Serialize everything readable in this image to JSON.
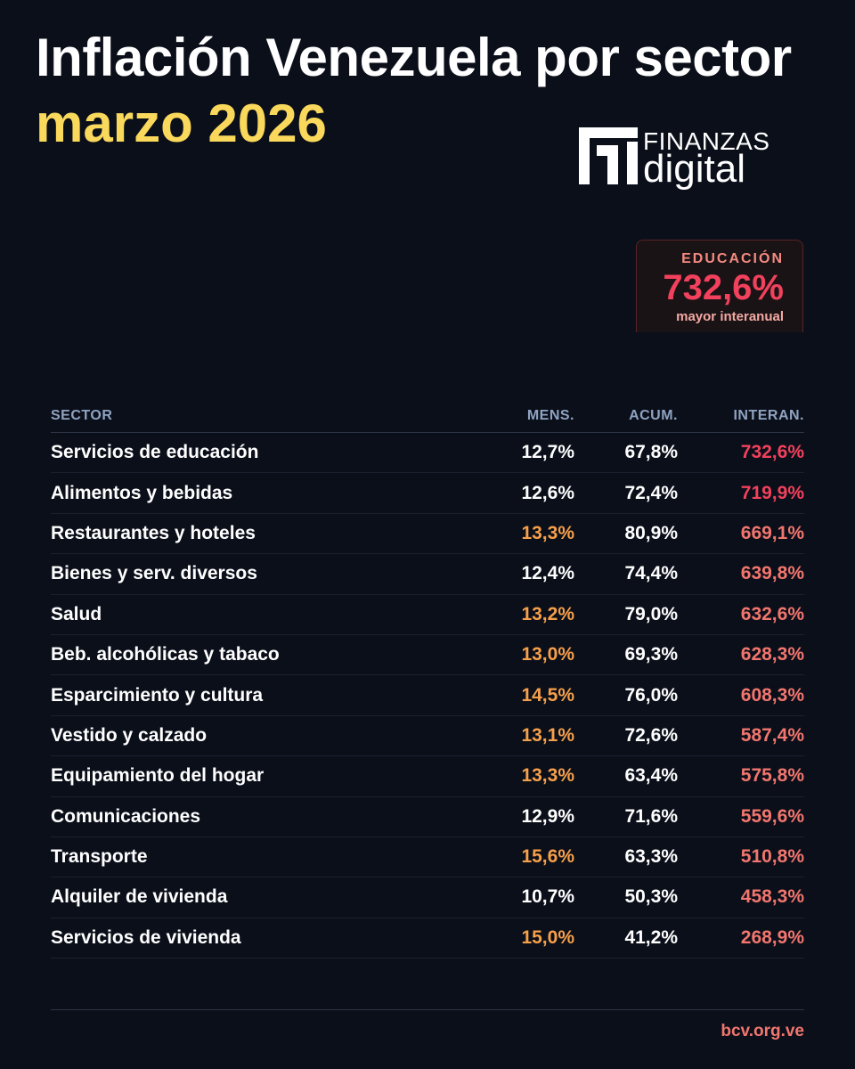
{
  "title": "Inflación Venezuela por sector",
  "subtitle": "marzo 2026",
  "logo": {
    "top": "FINANZAS",
    "bottom": "digital"
  },
  "highlight": {
    "label": "EDUCACIÓN",
    "value": "732,6%",
    "note": "mayor interanual"
  },
  "table": {
    "headers": {
      "sector": "SECTOR",
      "mens": "MENS.",
      "acum": "ACUM.",
      "inter": "INTERAN."
    },
    "rows": [
      {
        "sector": "Servicios de educación",
        "mens": "12,7%",
        "acum": "67,8%",
        "inter": "732,6%"
      },
      {
        "sector": "Alimentos y bebidas",
        "mens": "12,6%",
        "acum": "72,4%",
        "inter": "719,9%"
      },
      {
        "sector": "Restaurantes y hoteles",
        "mens": "13,3%",
        "acum": "80,9%",
        "inter": "669,1%"
      },
      {
        "sector": "Bienes y serv. diversos",
        "mens": "12,4%",
        "acum": "74,4%",
        "inter": "639,8%"
      },
      {
        "sector": "Salud",
        "mens": "13,2%",
        "acum": "79,0%",
        "inter": "632,6%"
      },
      {
        "sector": "Beb. alcohólicas y tabaco",
        "mens": "13,0%",
        "acum": "69,3%",
        "inter": "628,3%"
      },
      {
        "sector": "Esparcimiento y cultura",
        "mens": "14,5%",
        "acum": "76,0%",
        "inter": "608,3%"
      },
      {
        "sector": "Vestido y calzado",
        "mens": "13,1%",
        "acum": "72,6%",
        "inter": "587,4%"
      },
      {
        "sector": "Equipamiento del hogar",
        "mens": "13,3%",
        "acum": "63,4%",
        "inter": "575,8%"
      },
      {
        "sector": "Comunicaciones",
        "mens": "12,9%",
        "acum": "71,6%",
        "inter": "559,6%"
      },
      {
        "sector": "Transporte",
        "mens": "15,6%",
        "acum": "63,3%",
        "inter": "510,8%"
      },
      {
        "sector": "Alquiler de vivienda",
        "mens": "10,7%",
        "acum": "50,3%",
        "inter": "458,3%"
      },
      {
        "sector": "Servicios de vivienda",
        "mens": "15,0%",
        "acum": "41,2%",
        "inter": "268,9%"
      }
    ]
  },
  "colors": {
    "background": "#0b0f1a",
    "accent_yellow": "#f9d85b",
    "mens_normal": "#ffffff",
    "mens_high": "#f7a04a",
    "inter_top": "#f2415c",
    "inter_other": "#f2766e"
  },
  "source": "bcv.org.ve"
}
